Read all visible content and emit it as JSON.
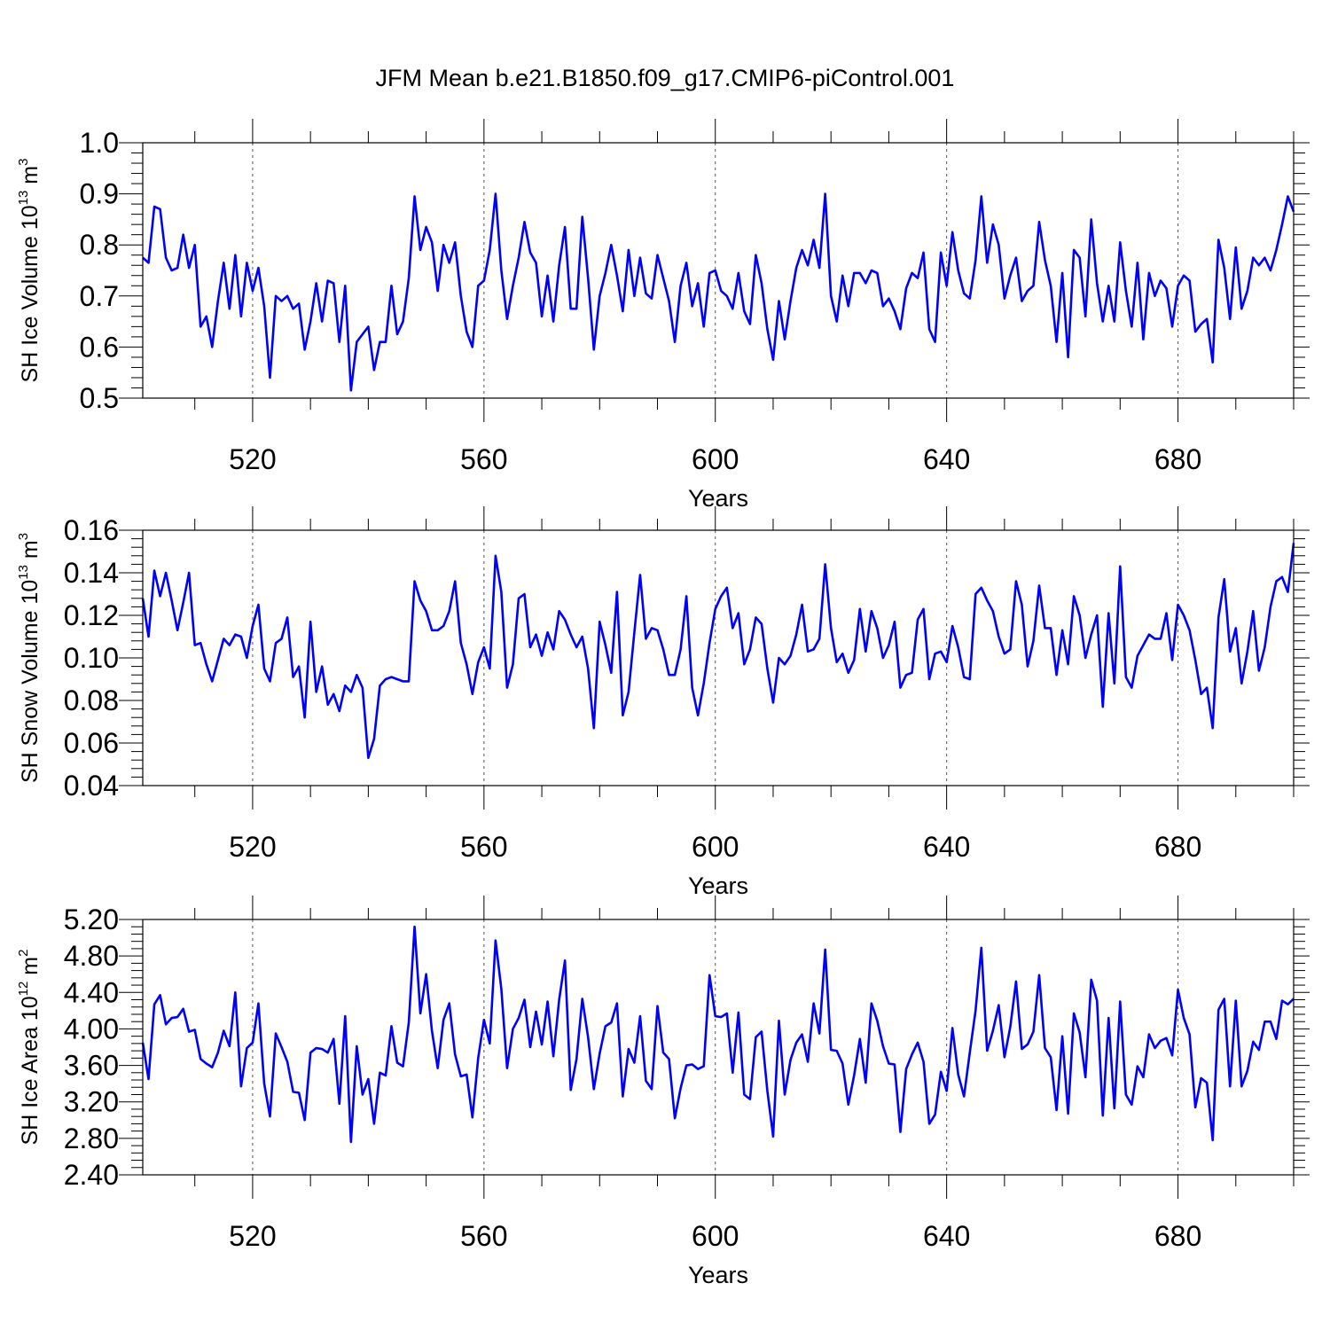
{
  "title": "JFM Mean b.e21.B1850.f09_g17.CMIP6-piControl.001",
  "chart_data": [
    {
      "type": "line",
      "title": "JFM Mean b.e21.B1850.f09_g17.CMIP6-piControl.001",
      "xlabel": "Years",
      "ylabel_main": "SH Ice Volume 10",
      "ylabel_exp": "13",
      "ylabel_unit": " m",
      "ylabel_unit_exp": "3",
      "xlim": [
        501,
        700
      ],
      "ylim": [
        0.5,
        1.0
      ],
      "xticks": [
        520,
        560,
        600,
        640,
        680
      ],
      "xtick_labels": [
        "520",
        "560",
        "600",
        "640",
        "680"
      ],
      "yticks": [
        0.5,
        0.6,
        0.7,
        0.8,
        0.9,
        1.0
      ],
      "ytick_labels": [
        "0.5",
        "0.6",
        "0.7",
        "0.8",
        "0.9",
        "1.0"
      ],
      "grid": "vertical-dashed",
      "series": [
        {
          "name": "SH Ice Volume",
          "color": "#0000ff",
          "x_start": 501,
          "values": [
            0.775,
            0.765,
            0.875,
            0.87,
            0.775,
            0.75,
            0.755,
            0.82,
            0.755,
            0.8,
            0.64,
            0.66,
            0.6,
            0.69,
            0.765,
            0.675,
            0.78,
            0.66,
            0.765,
            0.71,
            0.755,
            0.68,
            0.54,
            0.7,
            0.69,
            0.7,
            0.675,
            0.685,
            0.595,
            0.65,
            0.725,
            0.65,
            0.73,
            0.725,
            0.61,
            0.72,
            0.515,
            0.61,
            0.625,
            0.64,
            0.555,
            0.61,
            0.61,
            0.72,
            0.625,
            0.65,
            0.735,
            0.895,
            0.79,
            0.835,
            0.805,
            0.71,
            0.8,
            0.765,
            0.805,
            0.7,
            0.63,
            0.6,
            0.72,
            0.73,
            0.79,
            0.9,
            0.75,
            0.655,
            0.72,
            0.775,
            0.845,
            0.785,
            0.765,
            0.66,
            0.74,
            0.65,
            0.76,
            0.835,
            0.675,
            0.675,
            0.855,
            0.735,
            0.595,
            0.7,
            0.745,
            0.8,
            0.74,
            0.67,
            0.79,
            0.7,
            0.775,
            0.705,
            0.695,
            0.78,
            0.735,
            0.69,
            0.61,
            0.72,
            0.765,
            0.68,
            0.725,
            0.64,
            0.745,
            0.75,
            0.71,
            0.7,
            0.675,
            0.745,
            0.67,
            0.645,
            0.78,
            0.725,
            0.635,
            0.575,
            0.69,
            0.615,
            0.69,
            0.755,
            0.79,
            0.76,
            0.81,
            0.755,
            0.9,
            0.7,
            0.65,
            0.74,
            0.68,
            0.745,
            0.745,
            0.725,
            0.75,
            0.745,
            0.68,
            0.695,
            0.67,
            0.635,
            0.715,
            0.745,
            0.735,
            0.785,
            0.635,
            0.61,
            0.785,
            0.72,
            0.825,
            0.75,
            0.705,
            0.695,
            0.77,
            0.895,
            0.765,
            0.84,
            0.8,
            0.695,
            0.74,
            0.775,
            0.69,
            0.71,
            0.72,
            0.845,
            0.77,
            0.72,
            0.61,
            0.745,
            0.58,
            0.79,
            0.775,
            0.66,
            0.85,
            0.725,
            0.65,
            0.72,
            0.65,
            0.805,
            0.71,
            0.64,
            0.765,
            0.615,
            0.745,
            0.7,
            0.73,
            0.715,
            0.64,
            0.72,
            0.74,
            0.73,
            0.63,
            0.645,
            0.655,
            0.57,
            0.81,
            0.755,
            0.655,
            0.795,
            0.675,
            0.71,
            0.775,
            0.76,
            0.775,
            0.75,
            0.79,
            0.84,
            0.895,
            0.865
          ]
        }
      ]
    },
    {
      "type": "line",
      "xlabel": "Years",
      "ylabel_main": "SH Snow Volume 10",
      "ylabel_exp": "13",
      "ylabel_unit": " m",
      "ylabel_unit_exp": "3",
      "xlim": [
        501,
        700
      ],
      "ylim": [
        0.04,
        0.16
      ],
      "xticks": [
        520,
        560,
        600,
        640,
        680
      ],
      "xtick_labels": [
        "520",
        "560",
        "600",
        "640",
        "680"
      ],
      "yticks": [
        0.04,
        0.06,
        0.08,
        0.1,
        0.12,
        0.14,
        0.16
      ],
      "ytick_labels": [
        "0.04",
        "0.06",
        "0.08",
        "0.10",
        "0.12",
        "0.14",
        "0.16"
      ],
      "grid": "vertical-dashed",
      "series": [
        {
          "name": "SH Snow Volume",
          "color": "#0000ff",
          "x_start": 501,
          "values": [
            0.128,
            0.11,
            0.141,
            0.129,
            0.14,
            0.127,
            0.113,
            0.126,
            0.14,
            0.106,
            0.107,
            0.097,
            0.089,
            0.099,
            0.109,
            0.106,
            0.111,
            0.11,
            0.1,
            0.115,
            0.125,
            0.095,
            0.089,
            0.107,
            0.109,
            0.119,
            0.091,
            0.096,
            0.072,
            0.117,
            0.084,
            0.096,
            0.078,
            0.083,
            0.075,
            0.087,
            0.084,
            0.092,
            0.086,
            0.053,
            0.062,
            0.087,
            0.09,
            0.091,
            0.09,
            0.089,
            0.089,
            0.136,
            0.127,
            0.122,
            0.113,
            0.113,
            0.115,
            0.122,
            0.136,
            0.107,
            0.097,
            0.083,
            0.098,
            0.105,
            0.095,
            0.148,
            0.131,
            0.086,
            0.097,
            0.128,
            0.13,
            0.105,
            0.111,
            0.101,
            0.112,
            0.104,
            0.122,
            0.118,
            0.111,
            0.105,
            0.11,
            0.095,
            0.067,
            0.117,
            0.106,
            0.093,
            0.131,
            0.073,
            0.084,
            0.112,
            0.139,
            0.109,
            0.114,
            0.113,
            0.104,
            0.092,
            0.092,
            0.104,
            0.129,
            0.086,
            0.073,
            0.088,
            0.107,
            0.123,
            0.129,
            0.133,
            0.114,
            0.121,
            0.097,
            0.104,
            0.119,
            0.116,
            0.095,
            0.079,
            0.1,
            0.097,
            0.101,
            0.111,
            0.125,
            0.103,
            0.104,
            0.109,
            0.144,
            0.114,
            0.098,
            0.102,
            0.093,
            0.099,
            0.123,
            0.103,
            0.122,
            0.114,
            0.1,
            0.106,
            0.117,
            0.086,
            0.092,
            0.093,
            0.118,
            0.123,
            0.09,
            0.102,
            0.103,
            0.098,
            0.115,
            0.105,
            0.091,
            0.09,
            0.13,
            0.133,
            0.127,
            0.122,
            0.11,
            0.102,
            0.104,
            0.136,
            0.125,
            0.096,
            0.108,
            0.134,
            0.114,
            0.114,
            0.092,
            0.113,
            0.097,
            0.129,
            0.12,
            0.1,
            0.111,
            0.12,
            0.077,
            0.121,
            0.088,
            0.143,
            0.091,
            0.086,
            0.101,
            0.106,
            0.111,
            0.109,
            0.109,
            0.121,
            0.099,
            0.125,
            0.12,
            0.113,
            0.099,
            0.083,
            0.086,
            0.067,
            0.119,
            0.137,
            0.103,
            0.114,
            0.088,
            0.103,
            0.122,
            0.094,
            0.105,
            0.124,
            0.136,
            0.138,
            0.131,
            0.154
          ]
        }
      ]
    },
    {
      "type": "line",
      "xlabel": "Years",
      "ylabel_main": "SH Ice Area 10",
      "ylabel_exp": "12",
      "ylabel_unit": " m",
      "ylabel_unit_exp": "2",
      "xlim": [
        501,
        700
      ],
      "ylim": [
        2.4,
        5.2
      ],
      "xticks": [
        520,
        560,
        600,
        640,
        680
      ],
      "xtick_labels": [
        "520",
        "560",
        "600",
        "640",
        "680"
      ],
      "yticks": [
        2.4,
        2.8,
        3.2,
        3.6,
        4.0,
        4.4,
        4.8,
        5.2
      ],
      "ytick_labels": [
        "2.40",
        "2.80",
        "3.20",
        "3.60",
        "4.00",
        "4.40",
        "4.80",
        "5.20"
      ],
      "grid": "vertical-dashed",
      "series": [
        {
          "name": "SH Ice Area",
          "color": "#0000ff",
          "x_start": 501,
          "values": [
            3.85,
            3.45,
            4.27,
            4.37,
            4.05,
            4.12,
            4.13,
            4.22,
            3.97,
            3.99,
            3.67,
            3.62,
            3.58,
            3.74,
            3.98,
            3.81,
            4.4,
            3.37,
            3.79,
            3.85,
            4.28,
            3.4,
            3.04,
            3.95,
            3.8,
            3.64,
            3.31,
            3.3,
            3.0,
            3.74,
            3.79,
            3.78,
            3.74,
            3.89,
            3.18,
            4.14,
            2.76,
            3.81,
            3.28,
            3.45,
            2.96,
            3.52,
            3.49,
            4.03,
            3.63,
            3.59,
            4.07,
            5.12,
            4.17,
            4.6,
            3.98,
            3.57,
            4.1,
            4.28,
            3.72,
            3.48,
            3.5,
            3.03,
            3.68,
            4.1,
            3.84,
            4.97,
            4.44,
            3.57,
            4.0,
            4.12,
            4.32,
            3.8,
            4.19,
            3.83,
            4.3,
            3.7,
            4.32,
            4.75,
            3.33,
            3.67,
            4.33,
            3.91,
            3.34,
            3.73,
            4.03,
            4.07,
            4.28,
            3.26,
            3.78,
            3.63,
            4.14,
            3.43,
            3.34,
            4.25,
            3.74,
            3.67,
            3.02,
            3.35,
            3.6,
            3.61,
            3.56,
            3.59,
            4.59,
            4.14,
            4.13,
            4.17,
            3.52,
            4.18,
            3.28,
            3.23,
            3.91,
            3.97,
            3.32,
            2.82,
            4.09,
            3.28,
            3.66,
            3.85,
            3.94,
            3.64,
            4.28,
            3.95,
            4.87,
            3.77,
            3.76,
            3.62,
            3.17,
            3.49,
            3.89,
            3.41,
            4.28,
            4.09,
            3.81,
            3.62,
            3.61,
            2.87,
            3.56,
            3.72,
            3.85,
            3.64,
            2.96,
            3.06,
            3.53,
            3.32,
            4.01,
            3.5,
            3.26,
            3.74,
            4.2,
            4.89,
            3.76,
            3.98,
            4.26,
            3.69,
            4.02,
            4.52,
            3.78,
            3.83,
            3.97,
            4.59,
            3.79,
            3.69,
            3.11,
            3.92,
            3.07,
            4.17,
            3.96,
            3.47,
            4.54,
            4.31,
            3.05,
            4.12,
            3.13,
            4.3,
            3.28,
            3.17,
            3.59,
            3.47,
            3.94,
            3.79,
            3.87,
            3.9,
            3.71,
            4.43,
            4.12,
            3.94,
            3.14,
            3.46,
            3.41,
            2.78,
            4.21,
            4.33,
            3.37,
            4.31,
            3.37,
            3.54,
            3.86,
            3.77,
            4.08,
            4.08,
            3.89,
            4.31,
            4.27,
            4.33
          ]
        }
      ]
    }
  ]
}
